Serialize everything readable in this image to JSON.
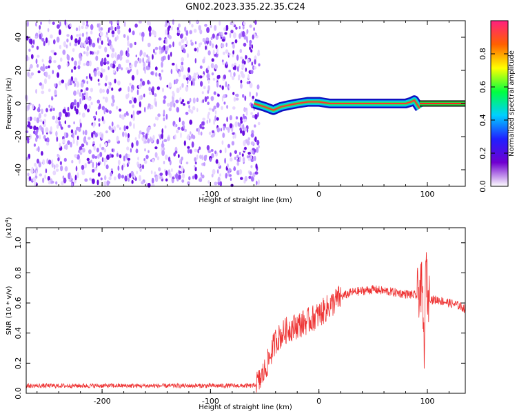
{
  "title": "GN02.2023.335.22.35.C24",
  "chart_data": [
    {
      "type": "heatmap",
      "xlabel": "Height of straight line (km)",
      "ylabel": "Frequency (Hz)",
      "xlim": [
        -270,
        135
      ],
      "ylim": [
        -50,
        50
      ],
      "x_ticks": [
        -200,
        -100,
        0,
        100
      ],
      "y_ticks": [
        -40,
        -20,
        0,
        20,
        40
      ],
      "noise_region_x": [
        -270,
        -55
      ],
      "signal_track": {
        "x": [
          -60,
          -50,
          -42,
          -35,
          -28,
          -20,
          -10,
          0,
          10,
          20,
          30,
          40,
          50,
          60,
          70,
          80,
          85,
          88,
          90,
          93
        ],
        "y": [
          0,
          -2,
          -4,
          -2,
          -1,
          0,
          1,
          1,
          0,
          0,
          0,
          0,
          0,
          0,
          0,
          0,
          1,
          2,
          0,
          -3
        ]
      },
      "line_at_zero_x": [
        93,
        135
      ],
      "grid": false
    },
    {
      "type": "line",
      "xlabel": "Height of straight line (km)",
      "ylabel": "SNR (10 * v/v)",
      "y_scale_label": "(x10",
      "y_scale_exp": "4",
      "xlim": [
        -270,
        135
      ],
      "ylim": [
        0,
        1.1
      ],
      "x_ticks": [
        -200,
        -100,
        0,
        100
      ],
      "y_ticks": [
        0.0,
        0.2,
        0.4,
        0.6,
        0.8,
        1.0
      ],
      "series": [
        {
          "color": "#ee3333",
          "x": [
            -270,
            -200,
            -150,
            -100,
            -60,
            -55,
            -50,
            -45,
            -40,
            -30,
            -20,
            -10,
            0,
            10,
            20,
            30,
            40,
            50,
            60,
            70,
            80,
            90,
            95,
            97,
            99,
            100,
            105,
            110,
            120,
            130,
            135
          ],
          "y": [
            0.05,
            0.05,
            0.05,
            0.05,
            0.05,
            0.08,
            0.15,
            0.25,
            0.35,
            0.42,
            0.45,
            0.48,
            0.52,
            0.58,
            0.64,
            0.67,
            0.68,
            0.69,
            0.68,
            0.67,
            0.66,
            0.65,
            0.7,
            0.3,
            0.9,
            0.65,
            0.62,
            0.62,
            0.6,
            0.58,
            0.56
          ]
        }
      ],
      "grid": false
    }
  ],
  "colorbar": {
    "label": "Normalized spectral amplitude",
    "ticks": [
      "0.0",
      "0.2",
      "0.4",
      "0.6",
      "0.8"
    ],
    "tick_values": [
      0.0,
      0.2,
      0.4,
      0.6,
      0.8
    ],
    "range": [
      0,
      1
    ],
    "colors": [
      "#ffffff",
      "#7000d0",
      "#2020ff",
      "#00d0ff",
      "#00ff40",
      "#ffff00",
      "#ff6000",
      "#ff2080"
    ]
  }
}
